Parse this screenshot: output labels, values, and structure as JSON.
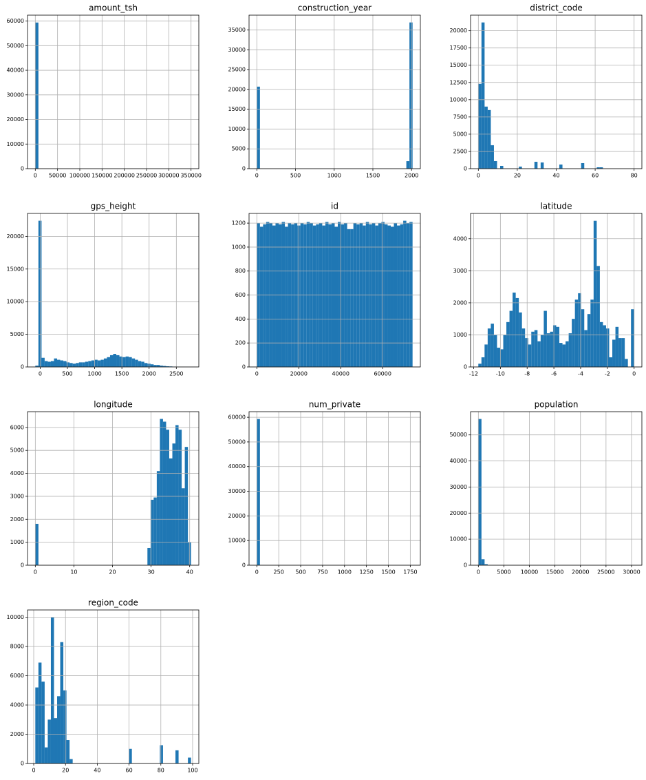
{
  "chart_data": [
    {
      "type": "histogram",
      "title": "amount_tsh",
      "color": "#1f77b4",
      "grid": true,
      "bins": [
        0,
        7000,
        350000
      ],
      "counts": [
        59400,
        0
      ],
      "xlim": [
        -17500,
        367500
      ],
      "xticks": [
        0,
        50000,
        100000,
        150000,
        200000,
        250000,
        300000,
        350000
      ],
      "ylim": [
        0,
        62400
      ],
      "yticks": [
        0,
        10000,
        20000,
        30000,
        40000,
        50000,
        60000
      ]
    },
    {
      "type": "histogram",
      "title": "construction_year",
      "color": "#1f77b4",
      "grid": true,
      "bins": [
        0,
        40.26,
        1932.5,
        1972.7,
        2013
      ],
      "counts": [
        20700,
        0,
        1900,
        36900
      ],
      "xlim": [
        -100.65,
        2113.65
      ],
      "xticks": [
        0,
        500,
        1000,
        1500,
        2000
      ],
      "ylim": [
        0,
        38745
      ],
      "yticks": [
        0,
        5000,
        10000,
        15000,
        20000,
        25000,
        30000,
        35000
      ]
    },
    {
      "type": "histogram",
      "title": "district_code",
      "color": "#1f77b4",
      "grid": true,
      "bins": [
        0,
        1.6,
        3.2,
        4.8,
        6.4,
        8,
        9.6,
        11.2,
        12.8,
        20.8,
        22.4,
        28.8,
        30.4,
        32,
        33.6,
        41.6,
        43.2,
        52.8,
        54.4,
        60.8,
        62.4,
        64,
        80
      ],
      "counts": [
        12300,
        21200,
        9000,
        8500,
        3400,
        1100,
        0,
        400,
        0,
        300,
        0,
        1000,
        0,
        900,
        0,
        600,
        0,
        800,
        0,
        200,
        200,
        0
      ],
      "xlim": [
        -4,
        84
      ],
      "xticks": [
        0,
        20,
        40,
        60,
        80
      ],
      "ylim": [
        0,
        22260
      ],
      "yticks": [
        0,
        2500,
        5000,
        7500,
        10000,
        12500,
        15000,
        17500,
        20000
      ]
    },
    {
      "type": "histogram",
      "title": "gps_height",
      "color": "#1f77b4",
      "grid": true,
      "bins": [
        -90,
        -32.8,
        24.4,
        81.6,
        138.8,
        196,
        253.2,
        310.4,
        367.6,
        424.8,
        482,
        539.2,
        596.4,
        653.6,
        710.8,
        768,
        825.2,
        882.4,
        939.6,
        996.8,
        1054,
        1111.2,
        1168.4,
        1225.6,
        1282.8,
        1340,
        1397.2,
        1454.4,
        1511.6,
        1568.8,
        1626,
        1683.2,
        1740.4,
        1797.6,
        1854.8,
        1912,
        1969.2,
        2026.4,
        2083.6,
        2140.8,
        2198,
        2255.2,
        2312.4,
        2369.6,
        2426.8,
        2484,
        2541.2,
        2598.4,
        2655.6,
        2712.8,
        2770
      ],
      "counts": [
        200,
        22400,
        1400,
        900,
        800,
        900,
        1300,
        1100,
        1000,
        900,
        700,
        600,
        500,
        600,
        700,
        700,
        800,
        900,
        1000,
        1100,
        1000,
        1100,
        1300,
        1500,
        1800,
        2000,
        1800,
        1600,
        1500,
        1600,
        1500,
        1300,
        1100,
        900,
        800,
        600,
        500,
        400,
        300,
        300,
        200,
        150,
        100,
        80,
        50,
        30,
        20,
        10,
        5,
        2
      ],
      "xlim": [
        -233,
        2913
      ],
      "xticks": [
        0,
        500,
        1000,
        1500,
        2000,
        2500
      ],
      "ylim": [
        0,
        23520
      ],
      "yticks": [
        0,
        5000,
        10000,
        15000,
        20000
      ]
    },
    {
      "type": "histogram",
      "title": "id",
      "color": "#1f77b4",
      "grid": true,
      "bins": [
        0,
        1485,
        2970,
        4455,
        5940,
        7425,
        8910,
        10395,
        11880,
        13365,
        14850,
        16335,
        17820,
        19305,
        20790,
        22275,
        23760,
        25245,
        26730,
        28215,
        29700,
        31185,
        32670,
        34155,
        35640,
        37125,
        38610,
        40095,
        41580,
        43065,
        44550,
        46035,
        47520,
        49005,
        50490,
        51975,
        53460,
        54945,
        56430,
        57915,
        59400,
        60885,
        62370,
        63855,
        65340,
        66825,
        68310,
        69795,
        71280,
        72765,
        74250
      ],
      "counts": [
        1200,
        1170,
        1190,
        1210,
        1200,
        1180,
        1200,
        1190,
        1210,
        1170,
        1200,
        1190,
        1200,
        1180,
        1200,
        1190,
        1210,
        1200,
        1180,
        1190,
        1200,
        1180,
        1210,
        1190,
        1200,
        1170,
        1210,
        1190,
        1200,
        1150,
        1150,
        1200,
        1190,
        1200,
        1180,
        1210,
        1190,
        1200,
        1180,
        1200,
        1210,
        1190,
        1180,
        1170,
        1200,
        1180,
        1190,
        1220,
        1200,
        1210
      ],
      "xlim": [
        -3712,
        77962
      ],
      "xticks": [
        0,
        20000,
        40000,
        60000
      ],
      "ylim": [
        0,
        1281
      ],
      "yticks": [
        0,
        200,
        400,
        600,
        800,
        1000,
        1200
      ]
    },
    {
      "type": "histogram",
      "title": "latitude",
      "color": "#1f77b4",
      "grid": true,
      "bins": [
        -11.65,
        -11.417,
        -11.184,
        -10.951,
        -10.718,
        -10.485,
        -10.252,
        -10.019,
        -9.786,
        -9.553,
        -9.32,
        -9.087,
        -8.854,
        -8.621,
        -8.388,
        -8.155,
        -7.922,
        -7.689,
        -7.456,
        -7.223,
        -6.99,
        -6.757,
        -6.524,
        -6.291,
        -6.058,
        -5.825,
        -5.592,
        -5.359,
        -5.126,
        -4.893,
        -4.66,
        -4.427,
        -4.194,
        -3.961,
        -3.728,
        -3.495,
        -3.262,
        -3.029,
        -2.796,
        -2.563,
        -2.33,
        -2.097,
        -1.864,
        -1.631,
        -1.398,
        -1.165,
        -0.932,
        -0.699,
        -0.466,
        -0.233,
        0
      ],
      "counts": [
        100,
        300,
        700,
        1200,
        1350,
        1000,
        600,
        550,
        1000,
        1400,
        1750,
        2320,
        2150,
        1700,
        1200,
        900,
        700,
        1100,
        1150,
        800,
        1000,
        1750,
        1050,
        1100,
        1300,
        1250,
        750,
        700,
        800,
        1050,
        1500,
        2100,
        2300,
        1800,
        1150,
        1650,
        2100,
        4560,
        3150,
        1400,
        1300,
        1200,
        300,
        850,
        1250,
        900,
        900,
        250,
        0,
        1800
      ],
      "xlim": [
        -12.23,
        0.58
      ],
      "xticks": [
        -12,
        -10,
        -8,
        -6,
        -4,
        -2,
        0
      ],
      "ylim": [
        0,
        4790
      ],
      "yticks": [
        0,
        1000,
        2000,
        3000,
        4000
      ]
    },
    {
      "type": "histogram",
      "title": "longitude",
      "color": "#1f77b4",
      "grid": true,
      "bins": [
        0,
        0.807,
        29.052,
        29.859,
        30.666,
        31.473,
        32.28,
        33.087,
        33.894,
        34.701,
        35.508,
        36.315,
        37.122,
        37.929,
        38.736,
        39.543,
        40.35
      ],
      "counts": [
        1800,
        0,
        750,
        2850,
        2950,
        4100,
        6370,
        6250,
        5900,
        4650,
        5300,
        6100,
        5900,
        3350,
        5150,
        1000
      ],
      "xlim": [
        -2.02,
        42.37
      ],
      "xticks": [
        0,
        10,
        20,
        30,
        40
      ],
      "ylim": [
        0,
        6685
      ],
      "yticks": [
        0,
        1000,
        2000,
        3000,
        4000,
        5000,
        6000
      ]
    },
    {
      "type": "histogram",
      "title": "num_private",
      "color": "#1f77b4",
      "grid": true,
      "bins": [
        0,
        35.52,
        1776
      ],
      "counts": [
        59300,
        0
      ],
      "xlim": [
        -88.8,
        1864.8
      ],
      "xticks": [
        0,
        250,
        500,
        750,
        1000,
        1250,
        1500,
        1750
      ],
      "ylim": [
        0,
        62265
      ],
      "yticks": [
        0,
        10000,
        20000,
        30000,
        40000,
        50000,
        60000
      ]
    },
    {
      "type": "histogram",
      "title": "population",
      "color": "#1f77b4",
      "grid": true,
      "bins": [
        0,
        610,
        1220,
        1830,
        30500
      ],
      "counts": [
        56100,
        2300,
        400,
        0
      ],
      "xlim": [
        -1525,
        32025
      ],
      "xticks": [
        0,
        5000,
        10000,
        15000,
        20000,
        25000,
        30000
      ],
      "ylim": [
        0,
        58905
      ],
      "yticks": [
        0,
        10000,
        20000,
        30000,
        40000,
        50000
      ]
    },
    {
      "type": "histogram",
      "title": "region_code",
      "color": "#1f77b4",
      "grid": true,
      "bins": [
        1,
        2.96,
        4.92,
        6.88,
        8.84,
        10.8,
        12.76,
        14.72,
        16.68,
        18.64,
        20.6,
        22.56,
        24.52,
        59.8,
        61.76,
        79.4,
        81.36,
        89.2,
        91.16,
        97.04,
        99
      ],
      "counts": [
        5200,
        6900,
        5600,
        1100,
        3000,
        10000,
        3100,
        4600,
        8300,
        5000,
        1600,
        300,
        0,
        1000,
        0,
        1250,
        0,
        900,
        0,
        400
      ],
      "xlim": [
        -3.9,
        103.9
      ],
      "xticks": [
        0,
        20,
        40,
        60,
        80,
        100
      ],
      "ylim": [
        0,
        10500
      ],
      "yticks": [
        0,
        2000,
        4000,
        6000,
        8000,
        10000
      ]
    }
  ]
}
